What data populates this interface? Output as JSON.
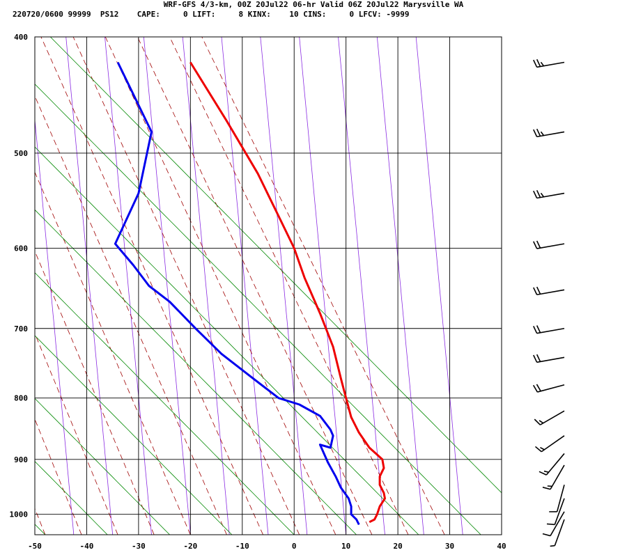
{
  "header": {
    "title_line": "WRF-GFS 4/3-km, 00Z 20Jul22 06-hr Valid 06Z 20Jul22 Marysville WA",
    "info_line": "220720/0600 99999  PS12    CAPE:     0 LIFT:     8 KINX:    10 CINS:     0 LFCV: -9999"
  },
  "chart_data": {
    "type": "line",
    "xlim": [
      -50,
      40
    ],
    "ylim": [
      400,
      1040
    ],
    "y_log": true,
    "x_ticks": [
      "-50",
      "-40",
      "-30",
      "-20",
      "-10",
      "0",
      "10",
      "20",
      "30",
      "40"
    ],
    "y_ticks": [
      "400",
      "500",
      "600",
      "700",
      "800",
      "900",
      "1000"
    ],
    "grid": true,
    "series": [
      {
        "color": "#ee0000",
        "points": [
          [
            -20,
            420
          ],
          [
            -13,
            470
          ],
          [
            -7,
            520
          ],
          [
            -2.5,
            570
          ],
          [
            0,
            600
          ],
          [
            2,
            635
          ],
          [
            5,
            680
          ],
          [
            7.5,
            725
          ],
          [
            9,
            770
          ],
          [
            10,
            800
          ],
          [
            11,
            830
          ],
          [
            12.5,
            855
          ],
          [
            14.5,
            880
          ],
          [
            17,
            900
          ],
          [
            17.3,
            915
          ],
          [
            16.5,
            930
          ],
          [
            16.5,
            945
          ],
          [
            17.3,
            960
          ],
          [
            17.5,
            970
          ],
          [
            16.5,
            985
          ],
          [
            16,
            1000
          ],
          [
            15.5,
            1010
          ],
          [
            14.5,
            1015
          ]
        ]
      },
      {
        "color": "#0000ee",
        "points": [
          [
            -34,
            420
          ],
          [
            -27.5,
            480
          ],
          [
            -30,
            540
          ],
          [
            -34.5,
            595
          ],
          [
            -31,
            620
          ],
          [
            -28,
            645
          ],
          [
            -24,
            665
          ],
          [
            -19,
            700
          ],
          [
            -14,
            735
          ],
          [
            -8,
            770
          ],
          [
            -3,
            800
          ],
          [
            1,
            810
          ],
          [
            5,
            828
          ],
          [
            7,
            850
          ],
          [
            7.5,
            860
          ],
          [
            7,
            880
          ],
          [
            5,
            875
          ],
          [
            6.5,
            905
          ],
          [
            8,
            930
          ],
          [
            9,
            950
          ],
          [
            10.5,
            970
          ],
          [
            11,
            985
          ],
          [
            11,
            1000
          ],
          [
            12,
            1010
          ],
          [
            12.5,
            1020
          ]
        ]
      }
    ],
    "winds": [
      {
        "p": 420,
        "dir": 260,
        "spd": 25
      },
      {
        "p": 480,
        "dir": 260,
        "spd": 25
      },
      {
        "p": 540,
        "dir": 260,
        "spd": 25
      },
      {
        "p": 595,
        "dir": 260,
        "spd": 20
      },
      {
        "p": 650,
        "dir": 260,
        "spd": 20
      },
      {
        "p": 700,
        "dir": 260,
        "spd": 20
      },
      {
        "p": 740,
        "dir": 260,
        "spd": 20
      },
      {
        "p": 780,
        "dir": 255,
        "spd": 20
      },
      {
        "p": 820,
        "dir": 240,
        "spd": 15
      },
      {
        "p": 860,
        "dir": 235,
        "spd": 15
      },
      {
        "p": 890,
        "dir": 220,
        "spd": 15
      },
      {
        "p": 910,
        "dir": 210,
        "spd": 15
      },
      {
        "p": 945,
        "dir": 195,
        "spd": 10
      },
      {
        "p": 970,
        "dir": 200,
        "spd": 10
      },
      {
        "p": 995,
        "dir": 210,
        "spd": 10
      },
      {
        "p": 1010,
        "dir": 200,
        "spd": 5
      }
    ]
  }
}
